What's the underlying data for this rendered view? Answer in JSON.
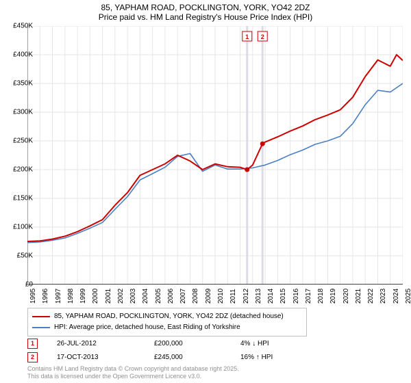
{
  "title_line1": "85, YAPHAM ROAD, POCKLINGTON, YORK, YO42 2DZ",
  "title_line2": "Price paid vs. HM Land Registry's House Price Index (HPI)",
  "chart": {
    "type": "line",
    "background_color": "#ffffff",
    "grid_color": "#e6e6e6",
    "axis_color": "#404040",
    "red_color": "#cc0000",
    "blue_color": "#4a7fc2",
    "marker_dot_color": "#cc0000",
    "marker_vline_color": "#dcdce6",
    "red_line_width": 2.0,
    "blue_line_width": 1.6,
    "ylim": [
      0,
      450000
    ],
    "ytick_step": 50000,
    "ylabels": [
      "£0",
      "£50K",
      "£100K",
      "£150K",
      "£200K",
      "£250K",
      "£300K",
      "£350K",
      "£400K",
      "£450K"
    ],
    "xlim": [
      1995,
      2025
    ],
    "xlabels": [
      "1995",
      "1996",
      "1997",
      "1998",
      "1999",
      "2000",
      "2001",
      "2002",
      "2003",
      "2004",
      "2005",
      "2006",
      "2007",
      "2008",
      "2009",
      "2010",
      "2011",
      "2012",
      "2013",
      "2014",
      "2015",
      "2016",
      "2017",
      "2018",
      "2019",
      "2020",
      "2021",
      "2022",
      "2023",
      "2024",
      "2025"
    ],
    "series_red": {
      "name": "85, YAPHAM ROAD, POCKLINGTON, YORK, YO42 2DZ (detached house)",
      "data": [
        [
          1995,
          75000
        ],
        [
          1996,
          76000
        ],
        [
          1997,
          79000
        ],
        [
          1998,
          84000
        ],
        [
          1999,
          92000
        ],
        [
          2000,
          102000
        ],
        [
          2001,
          113000
        ],
        [
          2002,
          138000
        ],
        [
          2003,
          160000
        ],
        [
          2004,
          190000
        ],
        [
          2005,
          200000
        ],
        [
          2006,
          210000
        ],
        [
          2007,
          225000
        ],
        [
          2008,
          215000
        ],
        [
          2009,
          200000
        ],
        [
          2010,
          210000
        ],
        [
          2011,
          205000
        ],
        [
          2012,
          204000
        ],
        [
          2012.56,
          200000
        ],
        [
          2013,
          208000
        ],
        [
          2013.79,
          245000
        ],
        [
          2014,
          248000
        ],
        [
          2015,
          257000
        ],
        [
          2016,
          267000
        ],
        [
          2017,
          276000
        ],
        [
          2018,
          287000
        ],
        [
          2019,
          295000
        ],
        [
          2020,
          304000
        ],
        [
          2021,
          326000
        ],
        [
          2022,
          362000
        ],
        [
          2023,
          391000
        ],
        [
          2024,
          380000
        ],
        [
          2024.5,
          400000
        ],
        [
          2025,
          390000
        ]
      ]
    },
    "series_blue": {
      "name": "HPI: Average price, detached house, East Riding of Yorkshire",
      "data": [
        [
          1995,
          73000
        ],
        [
          1996,
          74000
        ],
        [
          1997,
          77000
        ],
        [
          1998,
          81000
        ],
        [
          1999,
          89000
        ],
        [
          2000,
          98000
        ],
        [
          2001,
          108000
        ],
        [
          2002,
          131000
        ],
        [
          2003,
          153000
        ],
        [
          2004,
          182000
        ],
        [
          2005,
          193000
        ],
        [
          2006,
          204000
        ],
        [
          2007,
          223000
        ],
        [
          2008,
          228000
        ],
        [
          2009,
          197000
        ],
        [
          2010,
          208000
        ],
        [
          2011,
          201000
        ],
        [
          2012,
          201000
        ],
        [
          2013,
          203000
        ],
        [
          2014,
          208000
        ],
        [
          2015,
          216000
        ],
        [
          2016,
          226000
        ],
        [
          2017,
          234000
        ],
        [
          2018,
          244000
        ],
        [
          2019,
          250000
        ],
        [
          2020,
          258000
        ],
        [
          2021,
          280000
        ],
        [
          2022,
          313000
        ],
        [
          2023,
          338000
        ],
        [
          2024,
          335000
        ],
        [
          2025,
          350000
        ]
      ]
    },
    "markers": [
      {
        "label": "1",
        "x": 2012.56,
        "y": 200000
      },
      {
        "label": "2",
        "x": 2013.79,
        "y": 245000
      }
    ],
    "marker_box_top_y": 48
  },
  "legend": {
    "items": [
      {
        "color": "#cc0000",
        "width": 2.0,
        "text": "85, YAPHAM ROAD, POCKLINGTON, YORK, YO42 2DZ (detached house)"
      },
      {
        "color": "#4a7fc2",
        "width": 1.6,
        "text": "HPI: Average price, detached house, East Riding of Yorkshire"
      }
    ]
  },
  "sales_rows": [
    {
      "num": "1",
      "date": "26-JUL-2012",
      "price": "£200,000",
      "pct": "4% ↓ HPI"
    },
    {
      "num": "2",
      "date": "17-OCT-2013",
      "price": "£245,000",
      "pct": "16% ↑ HPI"
    }
  ],
  "footer_line1": "Contains HM Land Registry data © Crown copyright and database right 2025.",
  "footer_line2": "This data is licensed under the Open Government Licence v3.0."
}
